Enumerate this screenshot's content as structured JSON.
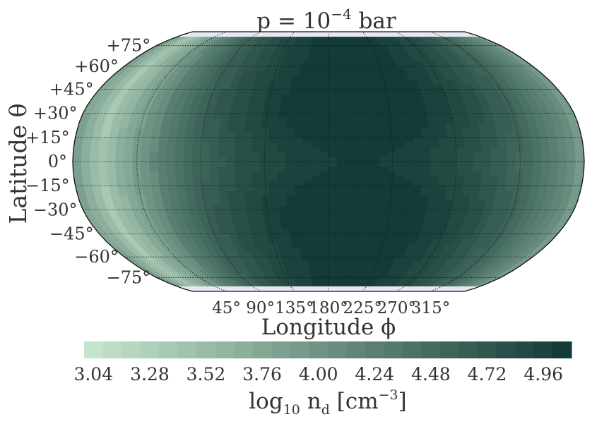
{
  "chart_data": {
    "type": "heatmap",
    "title": "p = 10−4 bar",
    "title_parts": {
      "base": "p = 10",
      "exponent": "−4",
      "unit": " bar"
    },
    "projection": "Robinson",
    "xlabel": "Longitude ϕ",
    "ylabel": "Latitude θ",
    "x_ticks": [
      "45°",
      "90°",
      "135°",
      "180°",
      "225°",
      "270°",
      "315°"
    ],
    "y_ticks": [
      "+75°",
      "+60°",
      "+45°",
      "+30°",
      "+15°",
      "0°",
      "−15°",
      "−30°",
      "−45°",
      "−60°",
      "−75°"
    ],
    "x_tick_values": [
      45,
      90,
      135,
      180,
      225,
      270,
      315
    ],
    "y_tick_values": [
      75,
      60,
      45,
      30,
      15,
      0,
      -15,
      -30,
      -45,
      -60,
      -75
    ],
    "lon_range": [
      0,
      360
    ],
    "lat_range": [
      -90,
      90
    ],
    "colorbar": {
      "label": "log₁₀ nᵈ [cm⁻³]",
      "label_parts": {
        "pre": "log",
        "sub": "10",
        "mid": " n",
        "sub2": "d",
        "post1": " [cm",
        "sup": "−3",
        "post2": "]"
      },
      "ticks": [
        "3.04",
        "3.28",
        "3.52",
        "3.76",
        "4.00",
        "4.24",
        "4.48",
        "4.72",
        "4.96"
      ],
      "range": [
        3.0,
        5.08
      ],
      "levels": 26,
      "color_low": "#c4e4cc",
      "color_high": "#143b36"
    },
    "field_description_values": {
      "dayside_center_lon": 200,
      "min_lon": 30,
      "max_value": 5.05,
      "min_value": 3.05
    },
    "grid": true
  }
}
